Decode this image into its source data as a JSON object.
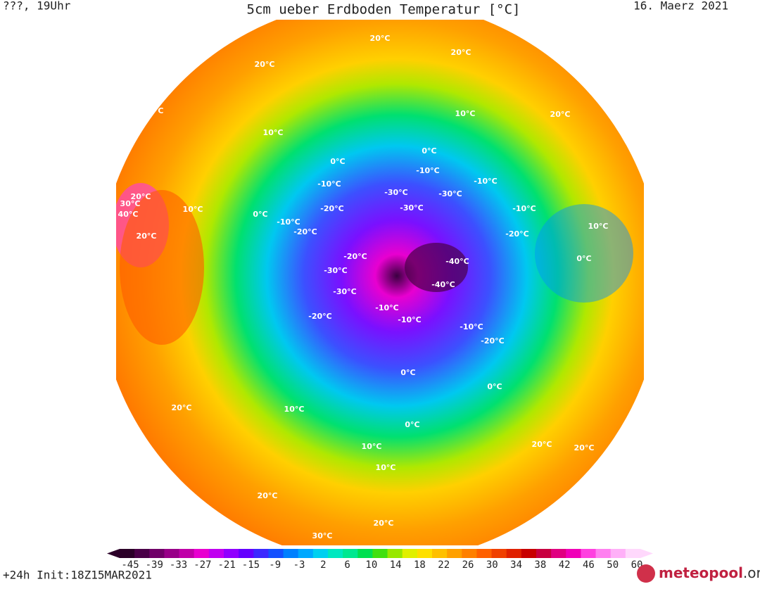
{
  "header": {
    "left": "???, 19Uhr",
    "title": "5cm ueber Erdboden Temperatur [°C]",
    "date": "16. Maerz 2021"
  },
  "footer": {
    "run": "+24h Init:18Z15MAR2021",
    "logo": "meteopool",
    "logo_suffix": ".org"
  },
  "colorbar": {
    "colors": [
      "#2b0028",
      "#4a0048",
      "#700068",
      "#980088",
      "#c000a8",
      "#e800d0",
      "#c000f0",
      "#9000ff",
      "#6400ff",
      "#3c28ff",
      "#1450ff",
      "#0080ff",
      "#00a8ff",
      "#00d0f0",
      "#00e8c0",
      "#00e890",
      "#00e050",
      "#40e010",
      "#98e800",
      "#e0f000",
      "#ffe000",
      "#ffc000",
      "#ffa000",
      "#ff8000",
      "#ff6000",
      "#f04000",
      "#e02000",
      "#c80000",
      "#c80040",
      "#e00080",
      "#f000b8",
      "#ff40e0",
      "#ff80f0",
      "#ffb0f8",
      "#ffd8fc"
    ],
    "ticks": [
      -45,
      -39,
      -33,
      -27,
      -21,
      -15,
      -9,
      -3,
      2,
      6,
      10,
      14,
      18,
      22,
      26,
      30,
      34,
      38,
      42,
      46,
      50,
      60
    ]
  },
  "contour_labels": [
    "20°C",
    "20°C",
    "20°C",
    "20°C",
    "20°C",
    "10°C",
    "10°C",
    "0°C",
    "0°C",
    "-10°C",
    "-10°C",
    "-10°C",
    "-20°C",
    "-20°C",
    "-30°C",
    "-30°C",
    "-30°C",
    "-40°C",
    "-40°C",
    "-20°C",
    "-30°C",
    "-30°C",
    "-20°C",
    "-10°C",
    "0°C",
    "10°C",
    "20°C",
    "30°C",
    "40°C",
    "20°C",
    "10°C",
    "0°C",
    "-10°C",
    "-20°C",
    "-10°C",
    "0°C",
    "10°C",
    "20°C",
    "20°C",
    "0°C",
    "10°C",
    "20°C",
    "20°C",
    "30°C",
    "-10°C",
    "0°C",
    "-20°C",
    "-10°C",
    "10°C",
    "20°C"
  ]
}
